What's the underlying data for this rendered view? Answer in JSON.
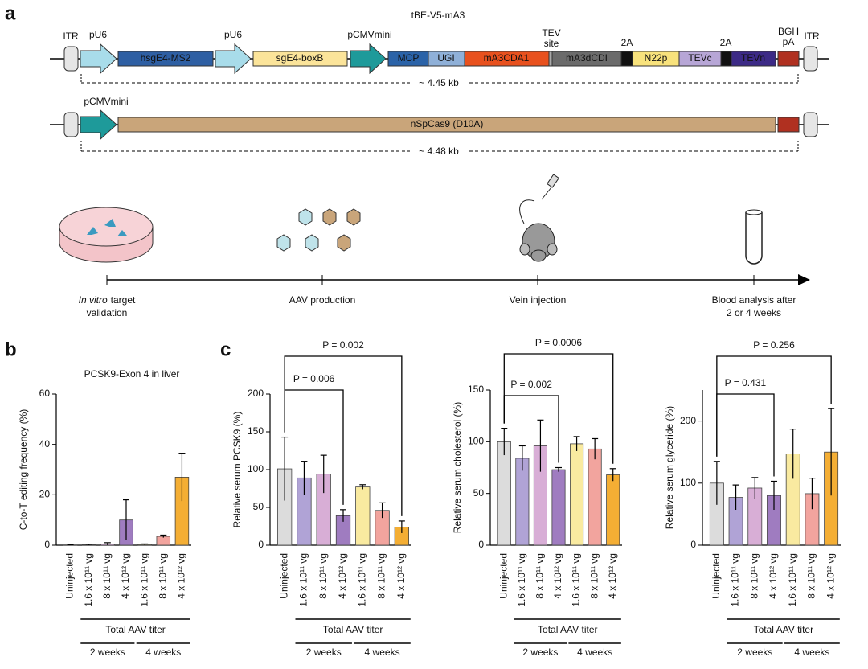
{
  "panel_labels": [
    "a",
    "b",
    "c"
  ],
  "diagram": {
    "title": "tBE-V5-mA3",
    "construct1": {
      "above": [
        "ITR",
        "pU6",
        "pU6",
        "pCMVmini",
        "2A",
        "2A",
        "ITR"
      ],
      "tev": [
        "TEV",
        "site"
      ],
      "bgh": [
        "BGH",
        "pA"
      ],
      "segments": [
        "hsgE4-MS2",
        "sgE4-boxB",
        "MCP",
        "UGI",
        "mA3CDA1",
        "mA3dCDI",
        "N22p",
        "TEVc",
        "TEVn"
      ],
      "size": "~ 4.45 kb"
    },
    "construct2": {
      "above": [
        "pCMVmini"
      ],
      "segments": [
        "nSpCas9 (D10A)"
      ],
      "size": "~ 4.48 kb"
    },
    "timeline": [
      {
        "italic": "In vitro",
        "text": "target",
        "line2": "validation"
      },
      {
        "text": "AAV production"
      },
      {
        "text": "Vein injection"
      },
      {
        "text": "Blood analysis after",
        "line2": "2 or 4 weeks"
      }
    ]
  },
  "chart_data": [
    {
      "type": "bar",
      "title": "PCSK9-Exon 4 in liver",
      "y_label": "C-to-T editing frequency (%)",
      "ylim": [
        0,
        60
      ],
      "yticks": [
        0,
        20,
        40,
        60
      ],
      "categories": [
        "Uninjected",
        "1.6 x 10¹¹ vg",
        "8 x 10¹¹ vg",
        "4 x 10¹² vg",
        "1.6 x 10¹¹ vg",
        "8 x 10¹¹ vg",
        "4 x 10¹² vg"
      ],
      "values": [
        0.1,
        0.2,
        0.5,
        10,
        0.3,
        3.5,
        27
      ],
      "errors": [
        0.1,
        0.2,
        0.5,
        8,
        0.2,
        0.5,
        9.5
      ],
      "colors": [
        "#dcdcdc",
        "#b0a3d6",
        "#d8aed6",
        "#9f7cc0",
        "#f9eaa0",
        "#f2a49e",
        "#f4ae34"
      ],
      "titer_label": "Total AAV titer",
      "groups": [
        "2 weeks",
        "4 weeks"
      ]
    },
    {
      "type": "bar",
      "y_label": "Relative serum PCSK9 (%)",
      "ylim": [
        0,
        200
      ],
      "yticks": [
        0,
        50,
        100,
        150,
        200
      ],
      "categories": [
        "Uninjected",
        "1.6 x 10¹¹ vg",
        "8 x 10¹¹ vg",
        "4 x 10¹² vg",
        "1.6 x 10¹¹ vg",
        "8 x 10¹¹ vg",
        "4 x 10¹² vg"
      ],
      "values": [
        101,
        89,
        94,
        39,
        77,
        46,
        24
      ],
      "errors": [
        42,
        22,
        25,
        8,
        3,
        10,
        8
      ],
      "colors": [
        "#dcdcdc",
        "#b0a3d6",
        "#d8aed6",
        "#9f7cc0",
        "#f9eaa0",
        "#f2a49e",
        "#f4ae34"
      ],
      "annotations": [
        "P = 0.006",
        "P = 0.002"
      ],
      "titer_label": "Total AAV titer",
      "groups": [
        "2 weeks",
        "4 weeks"
      ]
    },
    {
      "type": "bar",
      "y_label": "Relative serum cholesterol (%)",
      "ylim": [
        0,
        150
      ],
      "yticks": [
        0,
        50,
        100,
        150
      ],
      "categories": [
        "Uninjected",
        "1.6 x 10¹¹ vg",
        "8 x 10¹¹ vg",
        "4 x 10¹² vg",
        "1.6 x 10¹¹ vg",
        "8 x 10¹¹ vg",
        "4 x 10¹² vg"
      ],
      "values": [
        100,
        84,
        96,
        73,
        98,
        93,
        68
      ],
      "errors": [
        13,
        12,
        25,
        2,
        7,
        10,
        6
      ],
      "colors": [
        "#dcdcdc",
        "#b0a3d6",
        "#d8aed6",
        "#9f7cc0",
        "#f9eaa0",
        "#f2a49e",
        "#f4ae34"
      ],
      "annotations": [
        "P = 0.002",
        "P = 0.0006"
      ],
      "titer_label": "Total AAV titer",
      "groups": [
        "2 weeks",
        "4 weeks"
      ]
    },
    {
      "type": "bar",
      "y_label": "Relative serum glyceride (%)",
      "ylim": [
        0,
        250
      ],
      "yticks": [
        0,
        100,
        200
      ],
      "categories": [
        "Uninjected",
        "1.6 x 10¹¹ vg",
        "8 x 10¹¹ vg",
        "4 x 10¹² vg",
        "1.6 x 10¹¹ vg",
        "8 x 10¹¹ vg",
        "4 x 10¹² vg"
      ],
      "values": [
        100,
        77,
        92,
        80,
        147,
        83,
        150
      ],
      "errors": [
        35,
        20,
        17,
        23,
        40,
        25,
        70
      ],
      "colors": [
        "#dcdcdc",
        "#b0a3d6",
        "#d8aed6",
        "#9f7cc0",
        "#f9eaa0",
        "#f2a49e",
        "#f4ae34"
      ],
      "annotations": [
        "P = 0.431",
        "P = 0.256"
      ],
      "titer_label": "Total AAV titer",
      "groups": [
        "2 weeks",
        "4 weeks"
      ]
    }
  ]
}
